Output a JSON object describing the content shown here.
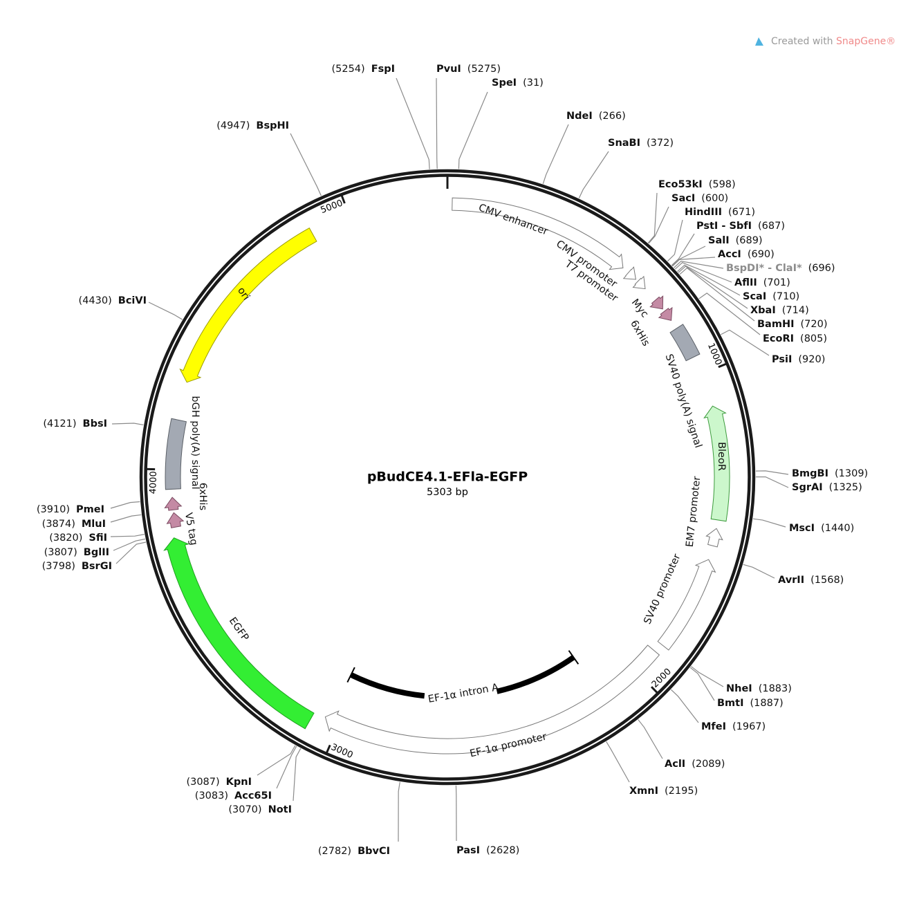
{
  "header": {
    "prefix": "Created with ",
    "brand": "SnapGene®"
  },
  "map": {
    "name": "pBudCE4.1-EFla-EGFP",
    "length": "5303 bp",
    "ticks": [
      1000,
      2000,
      3000,
      4000,
      5000
    ],
    "sites": [
      {
        "name": "FspI",
        "position": "(5254)"
      },
      {
        "name": "PvuI",
        "position": "(5275)"
      },
      {
        "name": "SpeI",
        "position": "(31)"
      },
      {
        "name": "NdeI",
        "position": "(266)"
      },
      {
        "name": "SnaBI",
        "position": "(372)"
      },
      {
        "name": "BspHI",
        "position": "(4947)"
      },
      {
        "name": "Eco53kI",
        "position": "(598)"
      },
      {
        "name": "SacI",
        "position": "(600)"
      },
      {
        "name": "HindIII",
        "position": "(671)"
      },
      {
        "name": "PstI - SbfI",
        "position": "(687)"
      },
      {
        "name": "SalI",
        "position": "(689)"
      },
      {
        "name": "AccI",
        "position": "(690)"
      },
      {
        "name": "BspDI* - ClaI*",
        "position": "(696)",
        "color": "#8c8c8c"
      },
      {
        "name": "AflII",
        "position": "(701)"
      },
      {
        "name": "ScaI",
        "position": "(710)"
      },
      {
        "name": "XbaI",
        "position": "(714)"
      },
      {
        "name": "BamHI",
        "position": "(720)"
      },
      {
        "name": "EcoRI",
        "position": "(805)"
      },
      {
        "name": "PsiI",
        "position": "(920)"
      },
      {
        "name": "BmgBI",
        "position": "(1309)"
      },
      {
        "name": "SgrAI",
        "position": "(1325)"
      },
      {
        "name": "MscI",
        "position": "(1440)"
      },
      {
        "name": "AvrII",
        "position": "(1568)"
      },
      {
        "name": "NheI",
        "position": "(1883)"
      },
      {
        "name": "BmtI",
        "position": "(1887)"
      },
      {
        "name": "MfeI",
        "position": "(1967)"
      },
      {
        "name": "AclI",
        "position": "(2089)"
      },
      {
        "name": "XmnI",
        "position": "(2195)"
      },
      {
        "name": "PasI",
        "position": "(2628)"
      },
      {
        "name": "BbvCI",
        "position": "(2782)"
      },
      {
        "name": "NotI",
        "position": "(3070)"
      },
      {
        "name": "Acc65I",
        "position": "(3083)"
      },
      {
        "name": "KpnI",
        "position": "(3087)"
      },
      {
        "name": "BsrGI",
        "position": "(3798)"
      },
      {
        "name": "BglII",
        "position": "(3807)"
      },
      {
        "name": "SfiI",
        "position": "(3820)"
      },
      {
        "name": "MluI",
        "position": "(3874)"
      },
      {
        "name": "PmeI",
        "position": "(3910)"
      },
      {
        "name": "BbsI",
        "position": "(4121)"
      },
      {
        "name": "BciVI",
        "position": "(4430)"
      }
    ],
    "features": [
      {
        "label": "CMV enhancer",
        "color": "#ffffff"
      },
      {
        "label": "CMV promoter",
        "color": "#ffffff"
      },
      {
        "label": "T7 promoter",
        "color": "#ffffff"
      },
      {
        "label": "Myc",
        "color": "#c48aa4"
      },
      {
        "label": "6xHis",
        "color": "#c48aa4"
      },
      {
        "label": "SV40 poly(A) signal",
        "color": "#a3a9b3"
      },
      {
        "label": "BleoR",
        "color": "#ccf7cc"
      },
      {
        "label": "EM7 promoter",
        "color": "#ffffff"
      },
      {
        "label": "SV40 promoter",
        "color": "#ffffff"
      },
      {
        "label": "EF-1α promoter",
        "color": "#ffffff"
      },
      {
        "label": "EF-1α intron A",
        "color": "#000000"
      },
      {
        "label": "EGFP",
        "color": "#33ee33"
      },
      {
        "label": "V5 tag",
        "color": "#c48aa4"
      },
      {
        "label": "6xHis",
        "color": "#c48aa4"
      },
      {
        "label": "bGH poly(A) signal",
        "color": "#a3a9b3"
      },
      {
        "label": "ori",
        "color": "#ffff00"
      }
    ]
  }
}
